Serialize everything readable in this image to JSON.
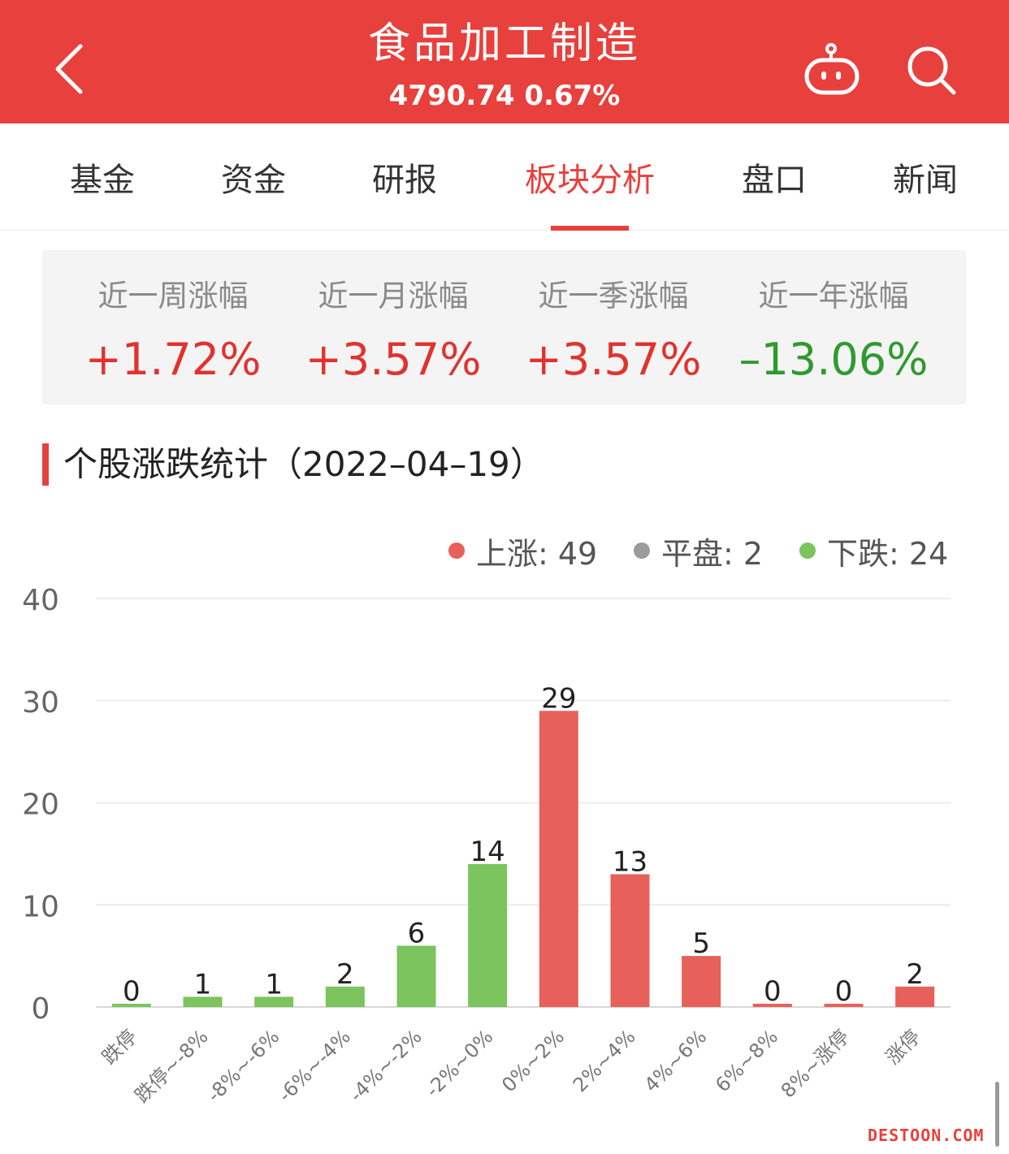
{
  "header": {
    "title": "食品加工制造",
    "subtitle": "4790.74 0.67%"
  },
  "tabs": [
    {
      "label": "基金"
    },
    {
      "label": "资金"
    },
    {
      "label": "研报"
    },
    {
      "label": "板块分析",
      "active": true
    },
    {
      "label": "盘口"
    },
    {
      "label": "新闻"
    }
  ],
  "stats": [
    {
      "label": "近一周涨幅",
      "value": "+1.72%"
    },
    {
      "label": "近一月涨幅",
      "value": "+3.57%"
    },
    {
      "label": "近一季涨幅",
      "value": "+3.57%"
    },
    {
      "label": "近一年涨幅",
      "value": "–13.06%"
    }
  ],
  "section": {
    "title": "个股涨跌统计（2022–04–19）"
  },
  "legend": [
    {
      "label": "上涨: 49",
      "color": "#e8605a"
    },
    {
      "label": "平盘: 2",
      "color": "#9b9b9b"
    },
    {
      "label": "下跌: 24",
      "color": "#7cc45e"
    }
  ],
  "colors": {
    "brand": "#e8403c",
    "up_bar": "#e8605a",
    "down_bar": "#7cc45e",
    "up_text": "#e0332f",
    "down_text": "#2f9a2f"
  },
  "chart_data": {
    "type": "bar",
    "categories": [
      "跌停",
      "跌停~-8%",
      "-8%~-6%",
      "-6%~-4%",
      "-4%~-2%",
      "-2%~0%",
      "0%~2%",
      "2%~4%",
      "4%~6%",
      "6%~8%",
      "8%~涨停",
      "涨停"
    ],
    "values": [
      0,
      1,
      1,
      2,
      6,
      14,
      29,
      13,
      5,
      0,
      0,
      2
    ],
    "bar_colors": [
      "down",
      "down",
      "down",
      "down",
      "down",
      "down",
      "up",
      "up",
      "up",
      "up",
      "up",
      "up"
    ],
    "yticks": [
      "0",
      "10",
      "20",
      "30",
      "40"
    ],
    "ylim": [
      0,
      40
    ],
    "grid": true,
    "legend_position": "top-right"
  },
  "watermark": "DESTOON.COM"
}
